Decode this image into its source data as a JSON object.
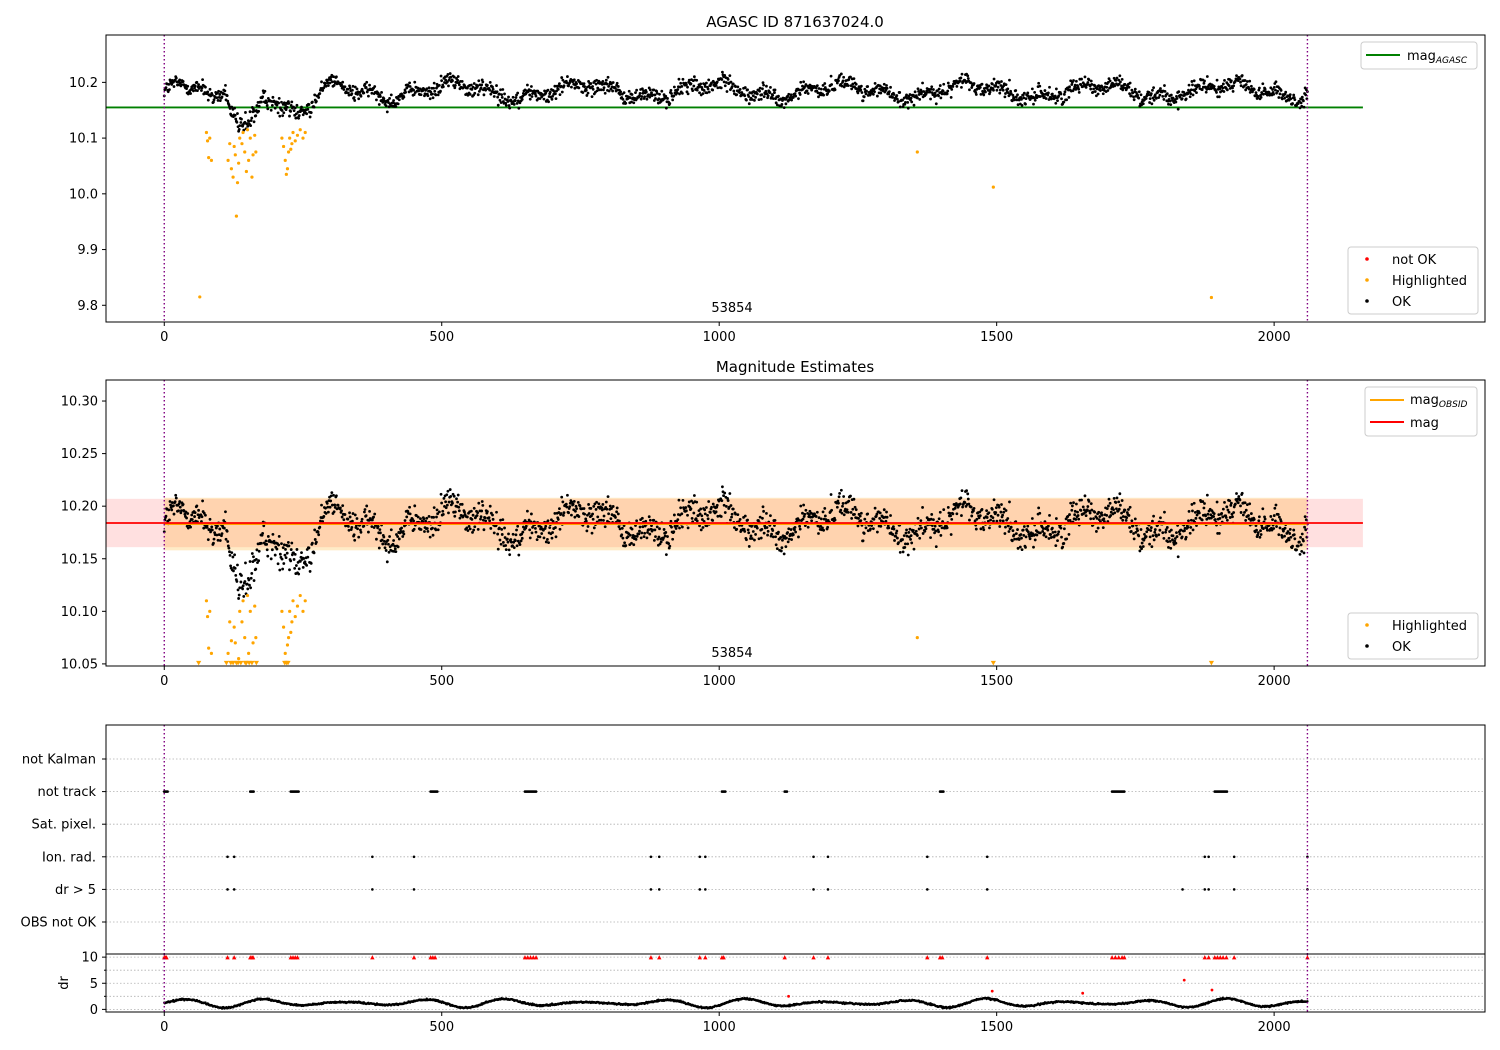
{
  "chart_data": [
    {
      "type": "scatter",
      "title": "AGASC ID 871637024.0",
      "xlim": [
        -105,
        2380
      ],
      "ylim": [
        9.77,
        10.285
      ],
      "xticks": [
        0,
        500,
        1000,
        1500,
        2000
      ],
      "yticks": [
        9.8,
        9.9,
        10.0,
        10.1,
        10.2
      ],
      "ytick_labels": [
        "9.8",
        "9.9",
        "10.0",
        "10.1",
        "10.2"
      ],
      "obsid_label": "53854",
      "obsid_label_x": 1027,
      "obs_bounds": [
        0,
        2060
      ],
      "mag_agasc": 10.155,
      "mag_agasc_xrange": [
        -105,
        2160
      ],
      "legend_top": {
        "placement": "top-right",
        "entries": [
          {
            "main": "mag",
            "sub": "AGASC",
            "color": "#008000"
          }
        ]
      },
      "legend_bottom": {
        "placement": "bottom-right",
        "entries": [
          {
            "label": "not OK",
            "color": "#ff0000"
          },
          {
            "label": "Highlighted",
            "color": "#ffa500"
          },
          {
            "label": "OK",
            "color": "#000000"
          }
        ]
      },
      "highlighted_points": [
        [
          64,
          9.815
        ],
        [
          76,
          10.11
        ],
        [
          78,
          10.095
        ],
        [
          80,
          10.065
        ],
        [
          82,
          10.1
        ],
        [
          85,
          10.06
        ],
        [
          115,
          10.06
        ],
        [
          118,
          10.09
        ],
        [
          121,
          10.045
        ],
        [
          124,
          10.03
        ],
        [
          126,
          10.085
        ],
        [
          128,
          10.07
        ],
        [
          130,
          9.96
        ],
        [
          132,
          10.02
        ],
        [
          134,
          10.055
        ],
        [
          136,
          10.1
        ],
        [
          140,
          10.09
        ],
        [
          142,
          10.11
        ],
        [
          145,
          10.075
        ],
        [
          148,
          10.04
        ],
        [
          150,
          10.115
        ],
        [
          152,
          10.06
        ],
        [
          155,
          10.1
        ],
        [
          158,
          10.03
        ],
        [
          160,
          10.07
        ],
        [
          163,
          10.105
        ],
        [
          165,
          10.075
        ],
        [
          212,
          10.1
        ],
        [
          215,
          10.085
        ],
        [
          218,
          10.06
        ],
        [
          220,
          10.035
        ],
        [
          222,
          10.045
        ],
        [
          224,
          10.075
        ],
        [
          226,
          10.1
        ],
        [
          228,
          10.08
        ],
        [
          230,
          10.09
        ],
        [
          232,
          10.11
        ],
        [
          236,
          10.095
        ],
        [
          240,
          10.105
        ],
        [
          245,
          10.115
        ],
        [
          250,
          10.1
        ],
        [
          254,
          10.11
        ],
        [
          1357,
          10.075
        ],
        [
          1494,
          10.012
        ],
        [
          1887,
          9.814
        ]
      ],
      "ok_series": {
        "x_range": [
          0,
          2060
        ],
        "count": 2000,
        "baseline": 10.185,
        "spread": 0.022
      },
      "dip_segments": [
        {
          "x": [
            70,
            110
          ],
          "depth": 0.035
        },
        {
          "x": [
            110,
            178
          ],
          "depth": 0.065
        },
        {
          "x": [
            195,
            290
          ],
          "depth": 0.05
        }
      ]
    },
    {
      "type": "scatter",
      "title": "Magnitude Estimates",
      "xlim": [
        -105,
        2380
      ],
      "ylim": [
        10.048,
        10.32
      ],
      "xticks": [
        0,
        500,
        1000,
        1500,
        2000
      ],
      "yticks": [
        10.05,
        10.1,
        10.15,
        10.2,
        10.25,
        10.3
      ],
      "ytick_labels": [
        "10.05",
        "10.10",
        "10.15",
        "10.20",
        "10.25",
        "10.30"
      ],
      "obsid_label": "53854",
      "obsid_label_x": 1027,
      "obs_bounds": [
        0,
        2060
      ],
      "mag": 10.184,
      "mag_band": [
        10.161,
        10.207
      ],
      "mag_xrange": [
        -105,
        2160
      ],
      "mag_obsid": 10.183,
      "mag_obsid_band": [
        10.158,
        10.208
      ],
      "mag_obsid_xrange": [
        0,
        2060
      ],
      "legend_top": {
        "placement": "top-right",
        "entries": [
          {
            "main": "mag",
            "sub": "OBSID",
            "color": "#ffa500"
          },
          {
            "main": "mag",
            "sub": "",
            "color": "#ff0000"
          }
        ]
      },
      "legend_bottom": {
        "placement": "bottom-right",
        "entries": [
          {
            "label": "Highlighted",
            "color": "#ffa500"
          },
          {
            "label": "OK",
            "color": "#000000"
          }
        ]
      },
      "highlighted_points": [
        [
          76,
          10.11
        ],
        [
          78,
          10.095
        ],
        [
          80,
          10.065
        ],
        [
          82,
          10.1
        ],
        [
          85,
          10.06
        ],
        [
          115,
          10.06
        ],
        [
          118,
          10.09
        ],
        [
          121,
          10.072
        ],
        [
          126,
          10.085
        ],
        [
          128,
          10.07
        ],
        [
          134,
          10.055
        ],
        [
          136,
          10.1
        ],
        [
          140,
          10.09
        ],
        [
          142,
          10.11
        ],
        [
          145,
          10.075
        ],
        [
          150,
          10.115
        ],
        [
          152,
          10.06
        ],
        [
          155,
          10.1
        ],
        [
          160,
          10.07
        ],
        [
          163,
          10.105
        ],
        [
          165,
          10.075
        ],
        [
          212,
          10.1
        ],
        [
          215,
          10.085
        ],
        [
          218,
          10.06
        ],
        [
          222,
          10.068
        ],
        [
          224,
          10.075
        ],
        [
          226,
          10.1
        ],
        [
          228,
          10.08
        ],
        [
          230,
          10.09
        ],
        [
          232,
          10.11
        ],
        [
          236,
          10.095
        ],
        [
          240,
          10.105
        ],
        [
          245,
          10.115
        ],
        [
          250,
          10.1
        ],
        [
          254,
          10.11
        ],
        [
          1357,
          10.075
        ]
      ],
      "clipped_points": [
        [
          62,
          10.05
        ],
        [
          112,
          10.05
        ],
        [
          120,
          10.05
        ],
        [
          124,
          10.05
        ],
        [
          130,
          10.05
        ],
        [
          133,
          10.05
        ],
        [
          138,
          10.05
        ],
        [
          146,
          10.05
        ],
        [
          148,
          10.05
        ],
        [
          153,
          10.05
        ],
        [
          158,
          10.05
        ],
        [
          166,
          10.05
        ],
        [
          217,
          10.05
        ],
        [
          220,
          10.05
        ],
        [
          223,
          10.05
        ],
        [
          1494,
          10.05
        ],
        [
          1887,
          10.05
        ]
      ]
    },
    {
      "type": "scatter",
      "flag_rows": [
        "OBS not OK",
        "dr > 5",
        "Ion. rad.",
        "Sat. pixel.",
        "not track",
        "not Kalman"
      ],
      "xlim": [
        -105,
        2380
      ],
      "xticks": [
        0,
        500,
        1000,
        1500,
        2000
      ],
      "obs_bounds": [
        0,
        2060
      ],
      "flags": {
        "not track": [
          [
            0,
            6
          ],
          [
            155,
            162
          ],
          [
            228,
            242
          ],
          [
            480,
            492
          ],
          [
            650,
            670
          ],
          [
            1005,
            1012
          ],
          [
            1118,
            1122
          ],
          [
            1398,
            1405
          ],
          [
            1708,
            1730
          ],
          [
            1893,
            1915
          ]
        ],
        "Ion. rad.": [
          114,
          126,
          375,
          450,
          877,
          892,
          965,
          975,
          1170,
          1196,
          1375,
          1483,
          1875,
          1882,
          1928,
          2060
        ],
        "dr > 5": [
          114,
          126,
          375,
          450,
          877,
          892,
          965,
          975,
          1170,
          1196,
          1375,
          1483,
          1835,
          1875,
          1882,
          1928,
          2060
        ]
      },
      "dr_panel": {
        "ylabel": "dr",
        "ylim": [
          -0.5,
          10.6
        ],
        "yticks": [
          0,
          5,
          10
        ],
        "red_cap": 10,
        "red_cap_points": [
          0,
          2,
          4,
          114,
          126,
          155,
          158,
          160,
          228,
          232,
          236,
          240,
          375,
          450,
          480,
          484,
          488,
          650,
          655,
          660,
          665,
          670,
          877,
          892,
          965,
          975,
          1005,
          1008,
          1118,
          1170,
          1196,
          1375,
          1398,
          1402,
          1483,
          1708,
          1714,
          1720,
          1726,
          1730,
          1875,
          1882,
          1893,
          1898,
          1903,
          1908,
          1914,
          1928,
          2060
        ],
        "red_points": [
          [
            1492,
            3.5
          ],
          [
            1655,
            3.1
          ],
          [
            1838,
            5.6
          ],
          [
            1888,
            3.7
          ],
          [
            1125,
            2.5
          ]
        ],
        "black_series": {
          "x_range": [
            0,
            2060
          ],
          "count": 2000,
          "baseline": 1.2,
          "amplitude": 0.9
        }
      }
    }
  ]
}
